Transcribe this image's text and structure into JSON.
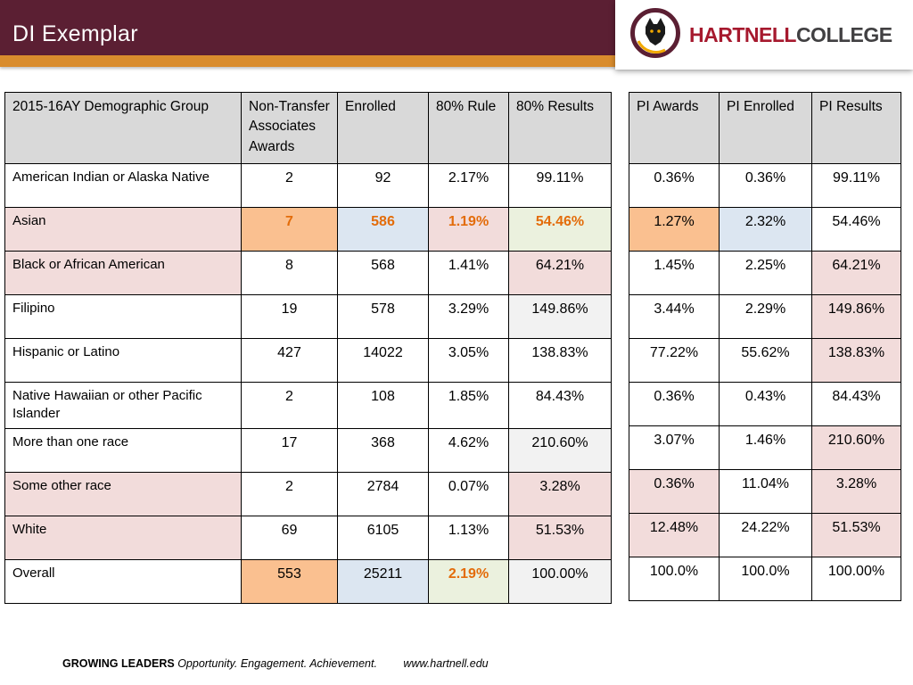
{
  "slide": {
    "title": "DI Exemplar"
  },
  "logo": {
    "part1": "HARTNELL",
    "part2": "COLLEGE",
    "icon": "hartnell-panther-emblem"
  },
  "colors": {
    "header_maroon": "#5B1F33",
    "accent_stripe_orange": "#D98C2D",
    "table_header_gray": "#D9D9D9",
    "row_pink": "#F2DCDB",
    "highlight_peach": "#FAC090",
    "highlight_blue": "#DCE6F1",
    "highlight_green": "#EBF1DE",
    "highlight_light_gray": "#F2F2F2",
    "highlight_orange_text": "#E36C0A",
    "logo_red": "#A6192E",
    "logo_gray": "#414042"
  },
  "table": {
    "left_headers": [
      "2015-16AY Demographic Group",
      "Non-Transfer Associates Awards",
      "Enrolled",
      "80% Rule",
      "80% Results"
    ],
    "right_headers": [
      "PI Awards",
      "PI Enrolled",
      "PI Results"
    ],
    "rows": [
      {
        "cells": [
          "American Indian or Alaska Native",
          "2",
          "92",
          "2.17%",
          "99.11%",
          "0.36%",
          "0.36%",
          "99.11%"
        ],
        "bg": [
          "w",
          "w",
          "w",
          "w",
          "w",
          "w",
          "w",
          "w"
        ],
        "orange": []
      },
      {
        "cells": [
          "Asian",
          "7",
          "586",
          "1.19%",
          "54.46%",
          "1.27%",
          "2.32%",
          "54.46%"
        ],
        "bg": [
          "p",
          "o",
          "b",
          "p",
          "g",
          "o",
          "b",
          "w"
        ],
        "orange": [
          1,
          2,
          3,
          4
        ]
      },
      {
        "cells": [
          "Black or African American",
          "8",
          "568",
          "1.41%",
          "64.21%",
          "1.45%",
          "2.25%",
          "64.21%"
        ],
        "bg": [
          "p",
          "w",
          "w",
          "w",
          "p",
          "w",
          "w",
          "p"
        ],
        "orange": []
      },
      {
        "cells": [
          "Filipino",
          "19",
          "578",
          "3.29%",
          "149.86%",
          "3.44%",
          "2.29%",
          "149.86%"
        ],
        "bg": [
          "w",
          "w",
          "w",
          "w",
          "y",
          "w",
          "w",
          "p"
        ],
        "orange": []
      },
      {
        "cells": [
          "Hispanic or Latino",
          "427",
          "14022",
          "3.05%",
          "138.83%",
          "77.22%",
          "55.62%",
          "138.83%"
        ],
        "bg": [
          "w",
          "w",
          "w",
          "w",
          "w",
          "w",
          "w",
          "p"
        ],
        "orange": []
      },
      {
        "cells": [
          "Native Hawaiian or other Pacific Islander",
          "2",
          "108",
          "1.85%",
          "84.43%",
          "0.36%",
          "0.43%",
          "84.43%"
        ],
        "bg": [
          "w",
          "w",
          "w",
          "w",
          "w",
          "w",
          "w",
          "w"
        ],
        "orange": []
      },
      {
        "cells": [
          "More than one race",
          "17",
          "368",
          "4.62%",
          "210.60%",
          "3.07%",
          "1.46%",
          "210.60%"
        ],
        "bg": [
          "w",
          "w",
          "w",
          "w",
          "y",
          "w",
          "w",
          "p"
        ],
        "orange": []
      },
      {
        "cells": [
          "Some other race",
          "2",
          "2784",
          "0.07%",
          "3.28%",
          "0.36%",
          "11.04%",
          "3.28%"
        ],
        "bg": [
          "p",
          "w",
          "w",
          "w",
          "p",
          "p",
          "w",
          "p"
        ],
        "orange": []
      },
      {
        "cells": [
          "White",
          "69",
          "6105",
          "1.13%",
          "51.53%",
          "12.48%",
          "24.22%",
          "51.53%"
        ],
        "bg": [
          "p",
          "w",
          "w",
          "w",
          "p",
          "p",
          "w",
          "p"
        ],
        "orange": []
      },
      {
        "cells": [
          "Overall",
          "553",
          "25211",
          "2.19%",
          "100.00%",
          "100.0%",
          "100.0%",
          "100.00%"
        ],
        "bg": [
          "w",
          "o",
          "b",
          "g",
          "y",
          "w",
          "w",
          "w"
        ],
        "orange": [
          3
        ]
      }
    ]
  },
  "footer": {
    "bold": "GROWING LEADERS",
    "tagline": "Opportunity. Engagement. Achievement.",
    "url": "www.hartnell.edu"
  }
}
